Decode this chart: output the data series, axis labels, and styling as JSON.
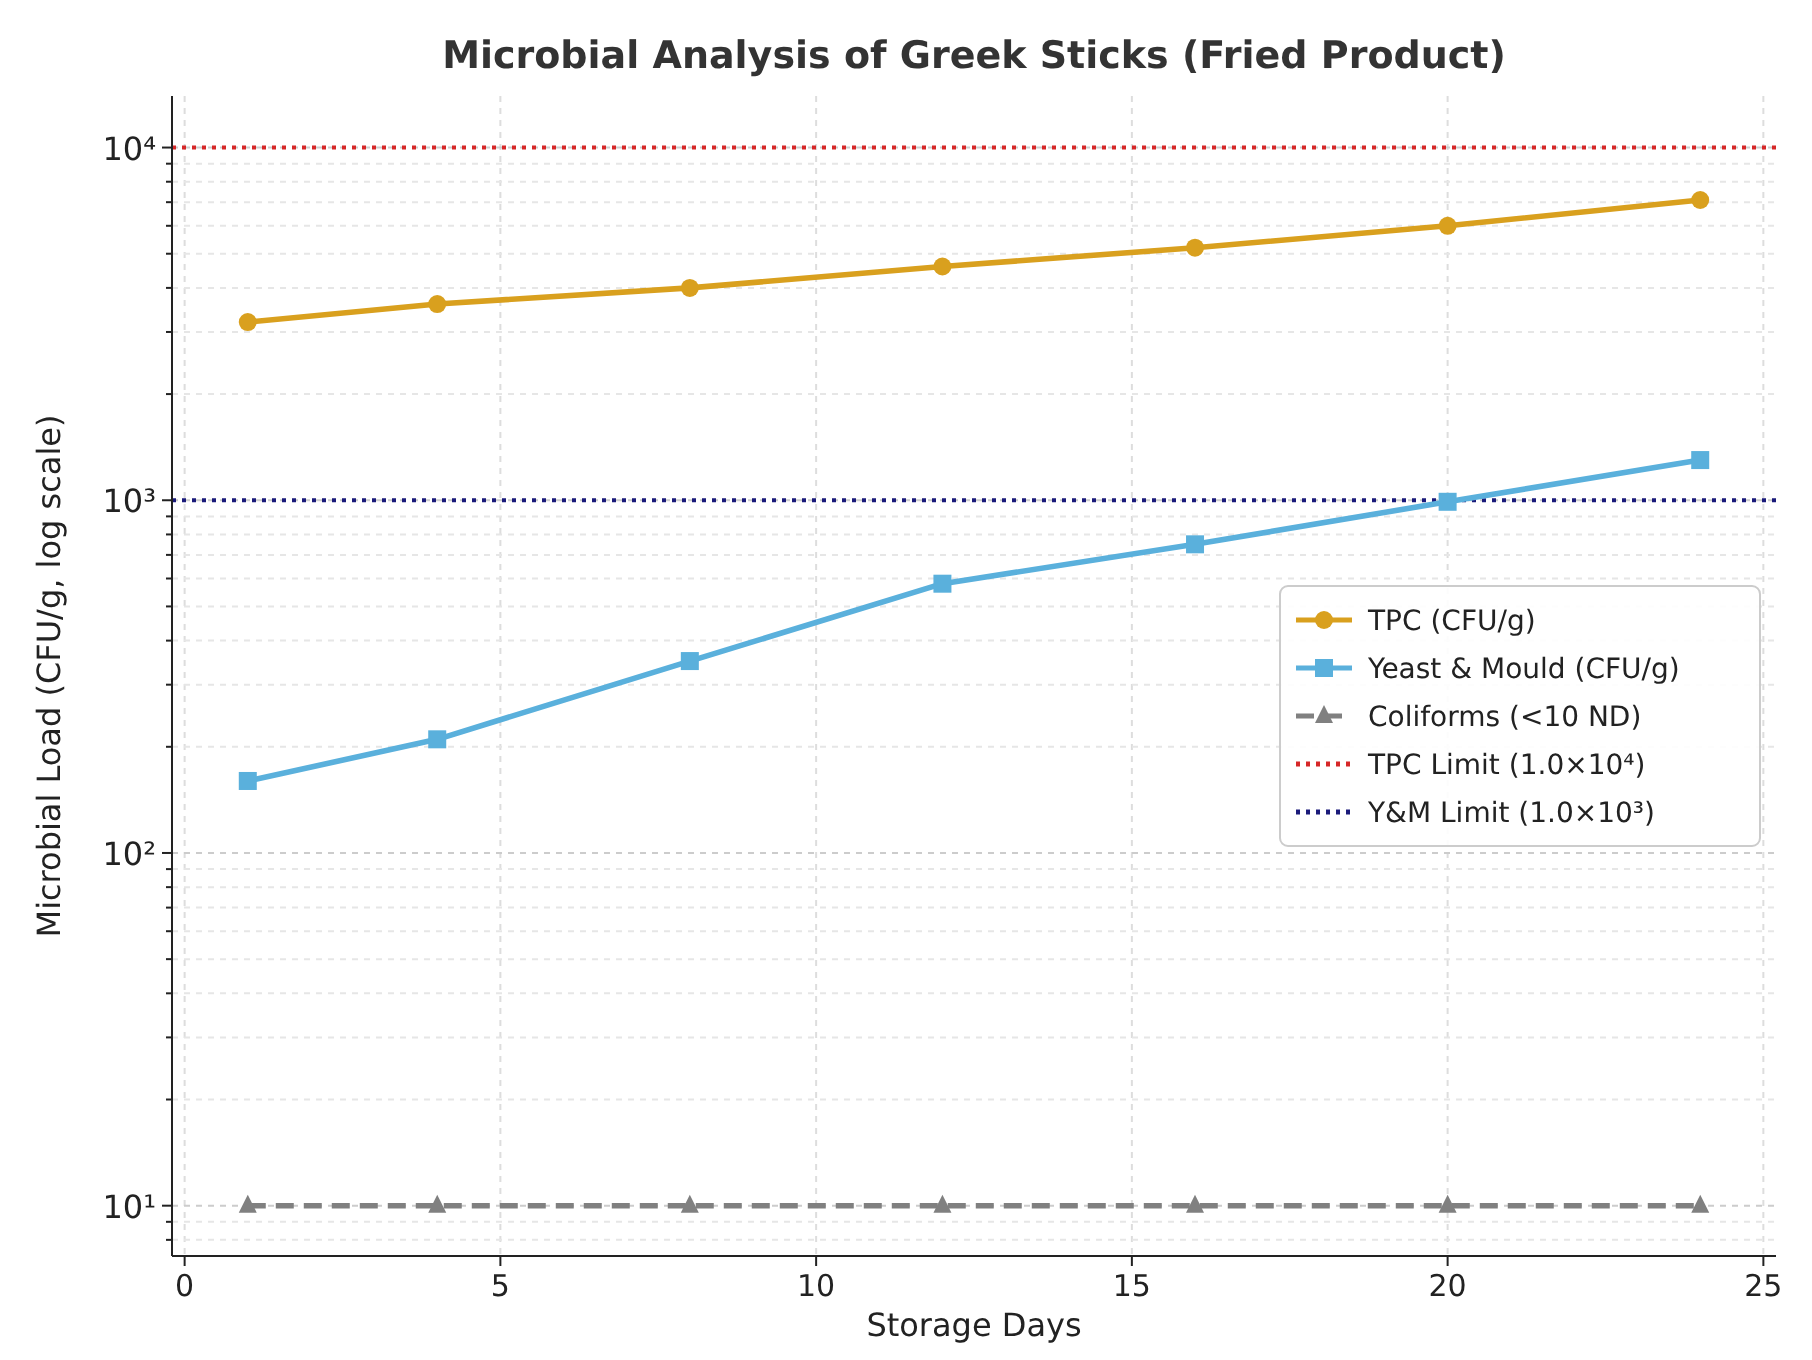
{
  "chart_data": {
    "type": "line",
    "title": "Microbial Analysis of Greek Sticks (Fried Product)",
    "xlabel": "Storage Days",
    "ylabel": "Microbial Load (CFU/g, log scale)",
    "x": [
      1,
      4,
      8,
      12,
      16,
      20,
      24
    ],
    "series": [
      {
        "name": "TPC (CFU/g)",
        "color": "#d9a01e",
        "marker": "circle",
        "line_style": "solid",
        "values": [
          3200,
          3600,
          4000,
          4600,
          5200,
          6000,
          7100
        ]
      },
      {
        "name": "Yeast & Mould (CFU/g)",
        "color": "#5ab0dc",
        "marker": "square",
        "line_style": "solid",
        "values": [
          160,
          210,
          350,
          580,
          750,
          990,
          1300
        ]
      },
      {
        "name": "Coliforms (<10 ND)",
        "color": "#808080",
        "marker": "triangle",
        "line_style": "dashed",
        "values": [
          10,
          10,
          10,
          10,
          10,
          10,
          10
        ]
      }
    ],
    "ref_lines": [
      {
        "axis": "y",
        "value": 10000,
        "label": "TPC Limit (1.0×10⁴)",
        "color": "#d62728",
        "line_style": "dotted"
      },
      {
        "axis": "y",
        "value": 1000,
        "label": "Y&M Limit (1.0×10³)",
        "color": "#1a1a7a",
        "line_style": "dotted"
      }
    ],
    "log": "y",
    "xlim": [
      -0.2,
      25.2
    ],
    "ylim": [
      7.2,
      14000
    ],
    "xticks": [
      0,
      5,
      10,
      15,
      20,
      25
    ],
    "yticks": [
      {
        "value": 8,
        "label": null
      },
      {
        "value": 9,
        "label": null
      },
      {
        "value": 10,
        "label": "10¹"
      },
      {
        "value": 20,
        "label": null
      },
      {
        "value": 30,
        "label": null
      },
      {
        "value": 40,
        "label": null
      },
      {
        "value": 50,
        "label": null
      },
      {
        "value": 60,
        "label": null
      },
      {
        "value": 70,
        "label": null
      },
      {
        "value": 80,
        "label": null
      },
      {
        "value": 90,
        "label": null
      },
      {
        "value": 100,
        "label": "10²"
      },
      {
        "value": 200,
        "label": null
      },
      {
        "value": 300,
        "label": null
      },
      {
        "value": 400,
        "label": null
      },
      {
        "value": 500,
        "label": null
      },
      {
        "value": 600,
        "label": null
      },
      {
        "value": 700,
        "label": null
      },
      {
        "value": 800,
        "label": null
      },
      {
        "value": 900,
        "label": null
      },
      {
        "value": 1000,
        "label": "10³"
      },
      {
        "value": 2000,
        "label": null
      },
      {
        "value": 3000,
        "label": null
      },
      {
        "value": 4000,
        "label": null
      },
      {
        "value": 5000,
        "label": null
      },
      {
        "value": 6000,
        "label": null
      },
      {
        "value": 7000,
        "label": null
      },
      {
        "value": 8000,
        "label": null
      },
      {
        "value": 9000,
        "label": null
      },
      {
        "value": 10000,
        "label": "10⁴"
      }
    ],
    "grid": true,
    "legend": "right"
  }
}
